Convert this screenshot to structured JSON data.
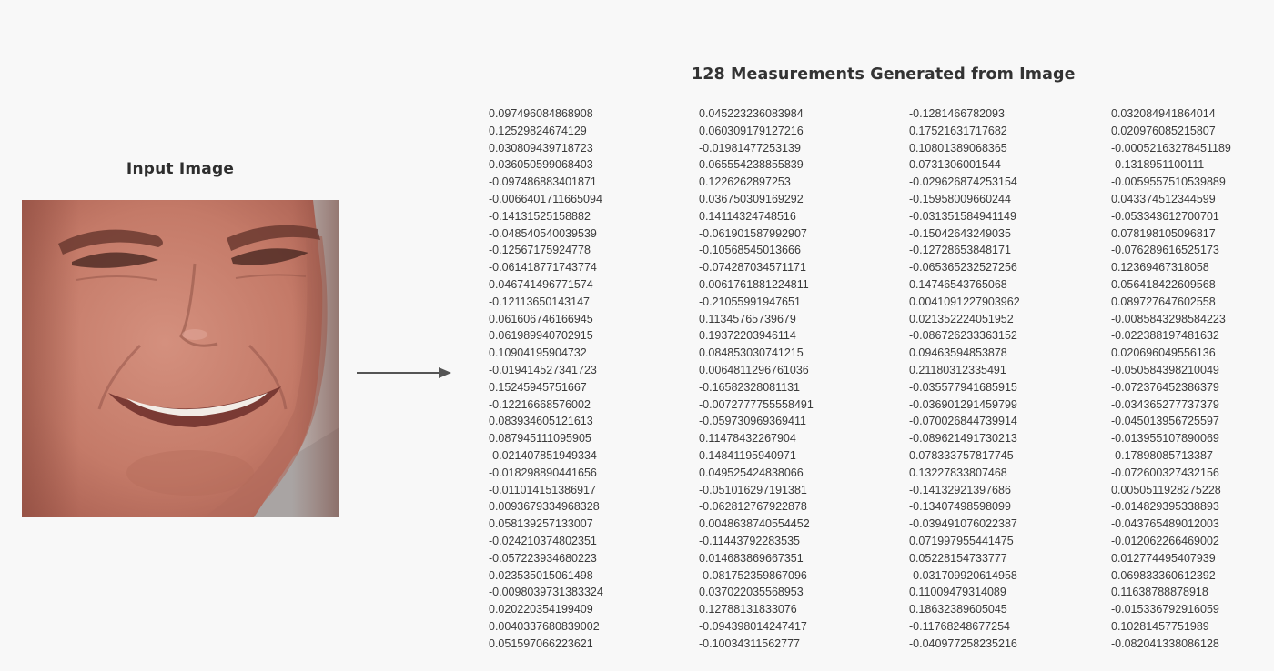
{
  "input": {
    "title": "Input Image"
  },
  "output": {
    "title": "128 Measurements Generated from Image"
  },
  "measurements": [
    [
      "0.097496084868908",
      "0.12529824674129",
      "0.030809439718723",
      "0.036050599068403",
      "-0.097486883401871",
      "-0.0066401711665094",
      "-0.14131525158882",
      "-0.048540540039539",
      "-0.12567175924778",
      "-0.061418771743774",
      "0.046741496771574",
      "-0.12113650143147",
      "0.061606746166945",
      "0.061989940702915",
      "0.10904195904732",
      "-0.019414527341723",
      "0.15245945751667",
      "-0.12216668576002",
      "0.083934605121613",
      "0.087945111095905",
      "-0.021407851949334",
      "-0.018298890441656",
      "-0.011014151386917",
      "0.0093679334968328",
      "0.058139257133007",
      "-0.024210374802351",
      "-0.057223934680223",
      "0.023535015061498",
      "-0.0098039731383324",
      "0.020220354199409",
      "0.0040337680839002",
      "0.051597066223621"
    ],
    [
      "0.045223236083984",
      "0.060309179127216",
      "-0.01981477253139",
      "0.065554238855839",
      "0.1226262897253",
      "0.036750309169292",
      "0.14114324748516",
      "-0.061901587992907",
      "-0.10568545013666",
      "-0.074287034571171",
      "0.0061761881224811",
      "-0.21055991947651",
      "0.11345765739679",
      "0.19372203946114",
      "0.084853030741215",
      "0.0064811296761036",
      "-0.16582328081131",
      "-0.0072777755558491",
      "-0.059730969369411",
      "0.11478432267904",
      "0.14841195940971",
      "0.049525424838066",
      "-0.051016297191381",
      "-0.062812767922878",
      "0.0048638740554452",
      "-0.11443792283535",
      "0.014683869667351",
      "-0.081752359867096",
      "0.037022035568953",
      "0.12788131833076",
      "-0.094398014247417",
      "-0.10034311562777"
    ],
    [
      "-0.1281466782093",
      "0.17521631717682",
      "0.10801389068365",
      "0.0731306001544",
      "-0.029626874253154",
      "-0.15958009660244",
      "-0.031351584941149",
      "-0.15042643249035",
      "-0.12728653848171",
      "-0.065365232527256",
      "0.14746543765068",
      "0.0041091227903962",
      "0.021352224051952",
      "-0.086726233363152",
      "0.09463594853878",
      "0.21180312335491",
      "-0.035577941685915",
      "-0.036901291459799",
      "-0.070026844739914",
      "-0.089621491730213",
      "0.078333757817745",
      "0.13227833807468",
      "-0.14132921397686",
      "-0.13407498598099",
      "-0.039491076022387",
      "0.071997955441475",
      "0.05228154733777",
      "-0.031709920614958",
      "0.11009479314089",
      "0.18632389605045",
      "-0.11768248677254",
      "-0.040977258235216"
    ],
    [
      "0.032084941864014",
      "0.020976085215807",
      "-0.00052163278451189",
      "-0.1318951100111",
      "-0.0059557510539889",
      "0.043374512344599",
      "-0.053343612700701",
      "0.078198105096817",
      "-0.076289616525173",
      "0.12369467318058",
      "0.056418422609568",
      "0.089727647602558",
      "-0.0085843298584223",
      "-0.022388197481632",
      "0.020696049556136",
      "-0.050584398210049",
      "-0.072376452386379",
      "-0.034365277737379",
      "-0.045013956725597",
      "-0.013955107890069",
      "-0.17898085713387",
      "-0.072600327432156",
      "0.0050511928275228",
      "-0.014829395338893",
      "-0.043765489012003",
      "-0.012062266469002",
      "0.012774495407939",
      "0.069833360612392",
      "0.11638788878918",
      "-0.015336792916059",
      "0.10281457751989",
      "-0.082041338086128"
    ]
  ],
  "colors": {
    "background": "#f8f8f8",
    "skin": "#c8806e",
    "text": "#3a3a3a",
    "arrow": "#555555"
  }
}
